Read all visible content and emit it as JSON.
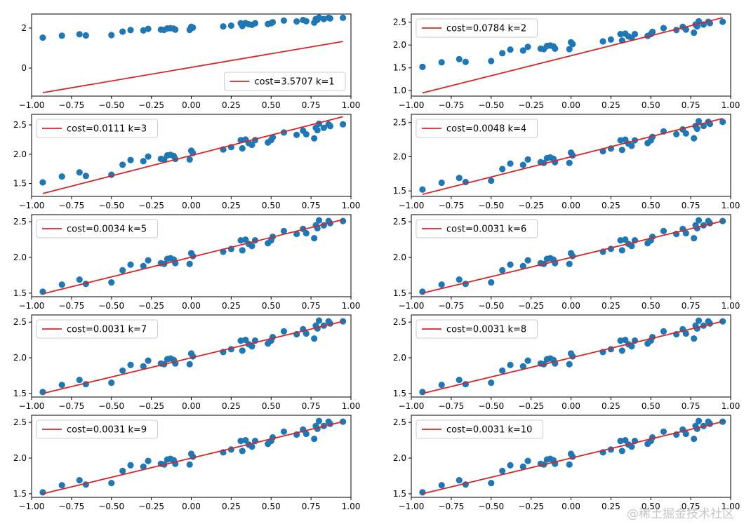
{
  "colors": {
    "points": "#1f77b4",
    "fit_line": "#d62728",
    "axes": "#000000"
  },
  "watermark": "@稀土掘金技术社区",
  "chart_data": [
    {
      "type": "scatter",
      "title": "",
      "xlabel": "",
      "ylabel": "",
      "xlim": [
        -1.0,
        1.0
      ],
      "ylim": [
        -1.4,
        2.7
      ],
      "xticks": [
        "−1.00",
        "−0.75",
        "−0.50",
        "−0.25",
        "0.00",
        "0.25",
        "0.50",
        "0.75",
        "1.00"
      ],
      "yticks": [
        "0",
        "2"
      ],
      "line": {
        "name": "cost=3.5707 k=1",
        "x": [
          -0.93,
          0.95
        ],
        "y": [
          -1.23,
          1.33
        ]
      },
      "legend": "lower-right"
    },
    {
      "type": "scatter",
      "title": "",
      "xlabel": "",
      "ylabel": "",
      "xlim": [
        -1.0,
        1.0
      ],
      "ylim": [
        0.88,
        2.68
      ],
      "xticks": [
        "−1.00",
        "−0.75",
        "−0.50",
        "−0.25",
        "0.00",
        "0.25",
        "0.50",
        "0.75",
        "1.00"
      ],
      "yticks": [
        "1.0",
        "1.5",
        "2.0",
        "2.5"
      ],
      "line": {
        "name": "cost=0.0784 k=2",
        "x": [
          -0.93,
          0.95
        ],
        "y": [
          0.95,
          2.6
        ]
      },
      "legend": "upper-left"
    },
    {
      "type": "scatter",
      "title": "",
      "xlabel": "",
      "ylabel": "",
      "xlim": [
        -1.0,
        1.0
      ],
      "ylim": [
        1.28,
        2.68
      ],
      "xticks": [
        "−1.00",
        "−0.75",
        "−0.50",
        "−0.25",
        "0.00",
        "0.25",
        "0.50",
        "0.75",
        "1.00"
      ],
      "yticks": [
        "1.5",
        "2.0",
        "2.5"
      ],
      "line": {
        "name": "cost=0.0111 k=3",
        "x": [
          -0.93,
          0.95
        ],
        "y": [
          1.33,
          2.64
        ]
      },
      "legend": "upper-left"
    },
    {
      "type": "scatter",
      "title": "",
      "xlabel": "",
      "ylabel": "",
      "xlim": [
        -1.0,
        1.0
      ],
      "ylim": [
        1.42,
        2.62
      ],
      "xticks": [
        "−1.00",
        "−0.75",
        "−0.50",
        "−0.25",
        "0.00",
        "0.25",
        "0.50",
        "0.75",
        "1.00"
      ],
      "yticks": [
        "1.5",
        "2.0",
        "2.5"
      ],
      "line": {
        "name": "cost=0.0048 k=4",
        "x": [
          -0.93,
          0.95
        ],
        "y": [
          1.45,
          2.56
        ]
      },
      "legend": "upper-left"
    },
    {
      "type": "scatter",
      "title": "",
      "xlabel": "",
      "ylabel": "",
      "xlim": [
        -1.0,
        1.0
      ],
      "ylim": [
        1.45,
        2.6
      ],
      "xticks": [
        "−1.00",
        "−0.75",
        "−0.50",
        "−0.25",
        "0.00",
        "0.25",
        "0.50",
        "0.75",
        "1.00"
      ],
      "yticks": [
        "1.5",
        "2.0",
        "2.5"
      ],
      "line": {
        "name": "cost=0.0034 k=5",
        "x": [
          -0.93,
          0.95
        ],
        "y": [
          1.49,
          2.53
        ]
      },
      "legend": "upper-left"
    },
    {
      "type": "scatter",
      "title": "",
      "xlabel": "",
      "ylabel": "",
      "xlim": [
        -1.0,
        1.0
      ],
      "ylim": [
        1.45,
        2.6
      ],
      "xticks": [
        "−1.00",
        "−0.75",
        "−0.50",
        "−0.25",
        "0.00",
        "0.25",
        "0.50",
        "0.75",
        "1.00"
      ],
      "yticks": [
        "1.5",
        "2.0",
        "2.5"
      ],
      "line": {
        "name": "cost=0.0031 k=6",
        "x": [
          -0.93,
          0.95
        ],
        "y": [
          1.5,
          2.51
        ]
      },
      "legend": "upper-left"
    },
    {
      "type": "scatter",
      "title": "",
      "xlabel": "",
      "ylabel": "",
      "xlim": [
        -1.0,
        1.0
      ],
      "ylim": [
        1.45,
        2.6
      ],
      "xticks": [
        "−1.00",
        "−0.75",
        "−0.50",
        "−0.25",
        "0.00",
        "0.25",
        "0.50",
        "0.75",
        "1.00"
      ],
      "yticks": [
        "1.5",
        "2.0",
        "2.5"
      ],
      "line": {
        "name": "cost=0.0031 k=7",
        "x": [
          -0.93,
          0.95
        ],
        "y": [
          1.5,
          2.51
        ]
      },
      "legend": "upper-left"
    },
    {
      "type": "scatter",
      "title": "",
      "xlabel": "",
      "ylabel": "",
      "xlim": [
        -1.0,
        1.0
      ],
      "ylim": [
        1.45,
        2.6
      ],
      "xticks": [
        "−1.00",
        "−0.75",
        "−0.50",
        "−0.25",
        "0.00",
        "0.25",
        "0.50",
        "0.75",
        "1.00"
      ],
      "yticks": [
        "1.5",
        "2.0",
        "2.5"
      ],
      "line": {
        "name": "cost=0.0031 k=8",
        "x": [
          -0.93,
          0.95
        ],
        "y": [
          1.5,
          2.51
        ]
      },
      "legend": "upper-left"
    },
    {
      "type": "scatter",
      "title": "",
      "xlabel": "",
      "ylabel": "",
      "xlim": [
        -1.0,
        1.0
      ],
      "ylim": [
        1.45,
        2.6
      ],
      "xticks": [
        "−1.00",
        "−0.75",
        "−0.50",
        "−0.25",
        "0.00",
        "0.25",
        "0.50",
        "0.75",
        "1.00"
      ],
      "yticks": [
        "1.5",
        "2.0",
        "2.5"
      ],
      "line": {
        "name": "cost=0.0031 k=9",
        "x": [
          -0.93,
          0.95
        ],
        "y": [
          1.5,
          2.51
        ]
      },
      "legend": "upper-left"
    },
    {
      "type": "scatter",
      "title": "",
      "xlabel": "",
      "ylabel": "",
      "xlim": [
        -1.0,
        1.0
      ],
      "ylim": [
        1.45,
        2.6
      ],
      "xticks": [
        "−1.00",
        "−0.75",
        "−0.50",
        "−0.25",
        "0.00",
        "0.25",
        "0.50",
        "0.75",
        "1.00"
      ],
      "yticks": [
        "1.5",
        "2.0",
        "2.5"
      ],
      "line": {
        "name": "cost=0.0031 k=10",
        "x": [
          -0.93,
          0.95
        ],
        "y": [
          1.5,
          2.51
        ]
      },
      "legend": "upper-left"
    }
  ],
  "points": {
    "x": [
      -0.93,
      -0.81,
      -0.7,
      -0.66,
      -0.5,
      -0.43,
      -0.38,
      -0.3,
      -0.27,
      -0.19,
      -0.17,
      -0.15,
      -0.13,
      -0.11,
      -0.1,
      -0.01,
      0.0,
      0.01,
      0.2,
      0.25,
      0.31,
      0.32,
      0.34,
      0.36,
      0.38,
      0.4,
      0.48,
      0.5,
      0.51,
      0.58,
      0.66,
      0.7,
      0.72,
      0.77,
      0.78,
      0.79,
      0.8,
      0.83,
      0.86,
      0.87,
      0.95
    ],
    "y": [
      1.52,
      1.62,
      1.69,
      1.63,
      1.65,
      1.82,
      1.9,
      1.88,
      1.96,
      1.92,
      1.91,
      1.98,
      1.99,
      1.97,
      1.92,
      1.91,
      2.06,
      2.02,
      2.08,
      2.12,
      2.24,
      2.1,
      2.25,
      2.19,
      2.16,
      2.24,
      2.2,
      2.24,
      2.29,
      2.37,
      2.33,
      2.4,
      2.34,
      2.27,
      2.45,
      2.41,
      2.52,
      2.45,
      2.51,
      2.48,
      2.51
    ]
  }
}
